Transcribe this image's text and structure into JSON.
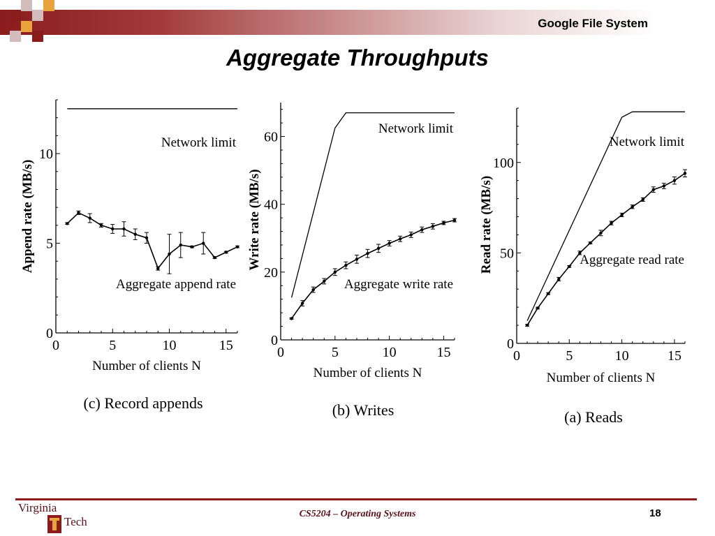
{
  "header": {
    "course_title": "Google File System"
  },
  "slide": {
    "title": "Aggregate Throughputs"
  },
  "footer": {
    "text": "CS5204 – Operating Systems",
    "page_number": "18"
  },
  "logo": {
    "virginia": "Virginia",
    "tech": "Tech"
  },
  "colors": {
    "brand": "#8a1c1c",
    "footer_text": "#5a0f1a",
    "ink": "#000000"
  },
  "chart_data": [
    {
      "type": "line",
      "caption": "(c) Record appends",
      "xlabel": "Number of clients N",
      "ylabel": "Append rate (MB/s)",
      "xlim": [
        0,
        16
      ],
      "ylim": [
        0,
        13
      ],
      "xticks": [
        0,
        5,
        10,
        15
      ],
      "yticks": [
        0,
        5,
        10
      ],
      "x_tick_labels": [
        "0",
        "5",
        "10",
        "15"
      ],
      "y_tick_labels": [
        "0",
        "5",
        "10"
      ],
      "series": [
        {
          "name": "Network limit",
          "x": [
            1,
            16
          ],
          "y": [
            12.5,
            12.5
          ],
          "error": null
        },
        {
          "name": "Aggregate append rate",
          "x": [
            1,
            2,
            3,
            4,
            5,
            6,
            7,
            8,
            9,
            10,
            11,
            12,
            13,
            14,
            15,
            16
          ],
          "y": [
            6.1,
            6.7,
            6.4,
            6.0,
            5.8,
            5.8,
            5.5,
            5.3,
            3.6,
            4.4,
            4.9,
            4.8,
            5.0,
            4.2,
            4.5,
            4.8
          ],
          "error": [
            0.05,
            0.1,
            0.25,
            0.1,
            0.25,
            0.4,
            0.3,
            0.3,
            0.1,
            1.1,
            0.7,
            0.05,
            0.6,
            0.05,
            0.05,
            0.05
          ]
        }
      ]
    },
    {
      "type": "line",
      "caption": "(b) Writes",
      "xlabel": "Number of clients N",
      "ylabel": "Write rate (MB/s)",
      "xlim": [
        0,
        16
      ],
      "ylim": [
        0,
        70
      ],
      "xticks": [
        0,
        5,
        10,
        15
      ],
      "yticks": [
        0,
        20,
        40,
        60
      ],
      "x_tick_labels": [
        "0",
        "5",
        "10",
        "15"
      ],
      "y_tick_labels": [
        "0",
        "20",
        "40",
        "60"
      ],
      "series": [
        {
          "name": "Network limit",
          "x": [
            1,
            5,
            6,
            16
          ],
          "y": [
            12.5,
            62.5,
            67,
            67
          ],
          "error": null
        },
        {
          "name": "Aggregate write rate",
          "x": [
            1,
            2,
            3,
            4,
            5,
            6,
            7,
            8,
            9,
            10,
            11,
            12,
            13,
            14,
            15,
            16
          ],
          "y": [
            6.3,
            10.8,
            14.8,
            17.3,
            20,
            22,
            23.8,
            25.5,
            27,
            28.5,
            29.8,
            31,
            32.5,
            33.5,
            34.5,
            35.3
          ],
          "error": [
            0.2,
            0.8,
            0.8,
            0.8,
            1.0,
            1.0,
            1.2,
            1.2,
            1.2,
            0.8,
            0.8,
            0.8,
            0.8,
            0.8,
            0.5,
            0.5
          ]
        }
      ]
    },
    {
      "type": "line",
      "caption": "(a) Reads",
      "xlabel": "Number of clients N",
      "ylabel": "Read rate (MB/s)",
      "xlim": [
        0,
        16
      ],
      "ylim": [
        0,
        130
      ],
      "xticks": [
        0,
        5,
        10,
        15
      ],
      "yticks": [
        0,
        50,
        100
      ],
      "x_tick_labels": [
        "0",
        "5",
        "10",
        "15"
      ],
      "y_tick_labels": [
        "0",
        "50",
        "100"
      ],
      "series": [
        {
          "name": "Network limit",
          "x": [
            1,
            10,
            11,
            16
          ],
          "y": [
            12.5,
            125,
            128,
            128
          ],
          "error": null
        },
        {
          "name": "Aggregate read rate",
          "x": [
            1,
            2,
            3,
            4,
            5,
            6,
            7,
            8,
            9,
            10,
            11,
            12,
            13,
            14,
            15,
            16
          ],
          "y": [
            10,
            19.5,
            27.5,
            35.5,
            42.5,
            50,
            55.5,
            61,
            66.5,
            71,
            75.5,
            79.5,
            85,
            87,
            90,
            94
          ],
          "error": [
            0.5,
            0.5,
            0.5,
            1,
            0.5,
            1,
            0.5,
            1.5,
            1,
            1,
            1,
            1,
            1.5,
            1.5,
            2,
            2
          ]
        }
      ]
    }
  ]
}
